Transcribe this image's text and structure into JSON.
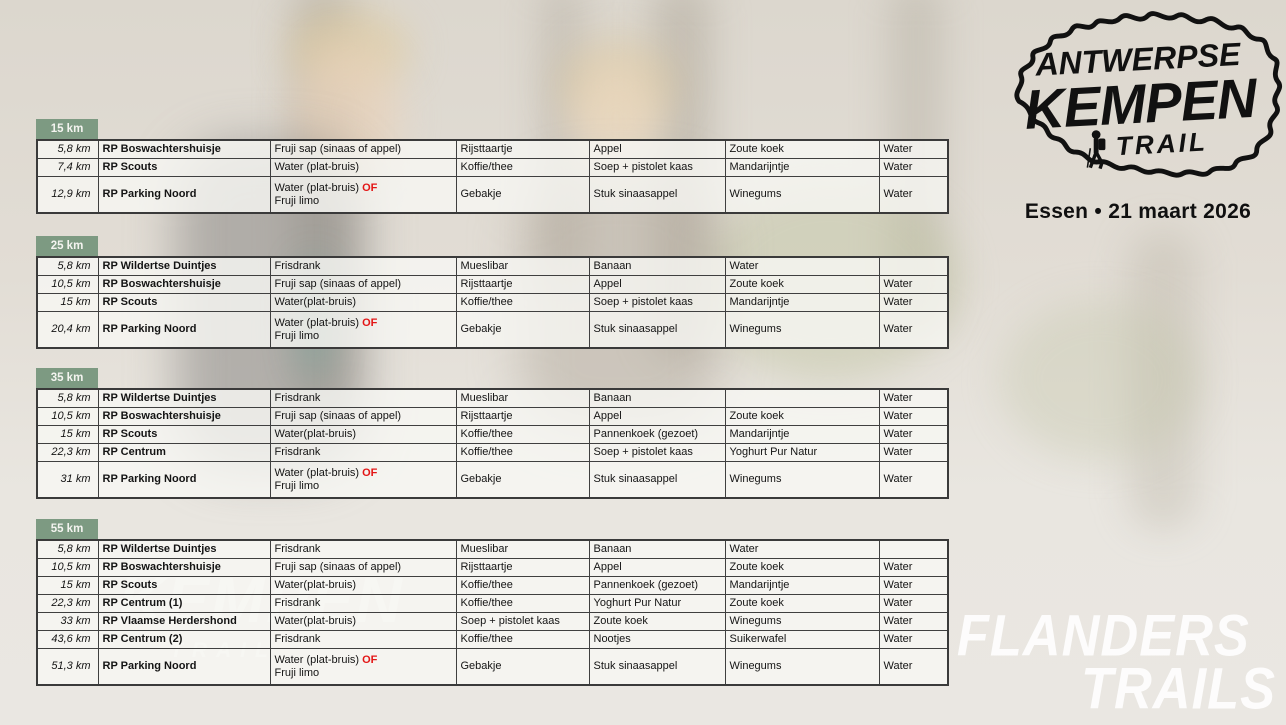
{
  "logo": {
    "line1": "ANTWERPSE",
    "line2": "KEMPEN",
    "line3": "TRAIL",
    "subtitle": "Essen • 21 maart 2026"
  },
  "watermark": {
    "line1": "FLANDERS",
    "line2": "TRAILS"
  },
  "ghost_watermark": {
    "line1": "KEMPEN",
    "line2": "TRAIL"
  },
  "colors": {
    "header_green": "#7d9a82",
    "accent_red": "#e31515",
    "table_border": "#3f3f3f",
    "text": "#141414",
    "watermark_white": "#ffffff"
  },
  "tables": [
    {
      "title": "15 km",
      "rows": [
        {
          "km": "5,8 km",
          "station": "RP Boswachtershuisje",
          "items": [
            "Fruji sap (sinaas of appel)",
            "Rijsttaartje",
            "Appel",
            "Zoute koek",
            "Water"
          ]
        },
        {
          "km": "7,4 km",
          "station": "RP Scouts",
          "items": [
            "Water (plat-bruis)",
            "Koffie/thee",
            "Soep + pistolet kaas",
            "Mandarijntje",
            "Water"
          ]
        },
        {
          "km": "12,9 km",
          "station": "RP Parking Noord",
          "items": [
            {
              "line1": "Water (plat-bruis) ",
              "red": "OF",
              "line2": "Fruji limo"
            },
            "Gebakje",
            "Stuk sinaasappel",
            "Winegums",
            "Water"
          ]
        }
      ]
    },
    {
      "title": "25 km",
      "rows": [
        {
          "km": "5,8 km",
          "station": "RP Wildertse Duintjes",
          "items": [
            "Frisdrank",
            "Mueslibar",
            "Banaan",
            "Water",
            ""
          ]
        },
        {
          "km": "10,5 km",
          "station": "RP Boswachtershuisje",
          "items": [
            "Fruji sap (sinaas of appel)",
            "Rijsttaartje",
            "Appel",
            "Zoute koek",
            "Water"
          ]
        },
        {
          "km": "15 km",
          "station": "RP Scouts",
          "items": [
            "Water(plat-bruis)",
            "Koffie/thee",
            "Soep + pistolet kaas",
            "Mandarijntje",
            "Water"
          ]
        },
        {
          "km": "20,4 km",
          "station": "RP Parking Noord",
          "items": [
            {
              "line1": "Water (plat-bruis) ",
              "red": "OF",
              "line2": "Fruji limo"
            },
            "Gebakje",
            "Stuk sinaasappel",
            "Winegums",
            "Water"
          ]
        }
      ]
    },
    {
      "title": "35 km",
      "rows": [
        {
          "km": "5,8 km",
          "station": "RP Wildertse Duintjes",
          "items": [
            "Frisdrank",
            "Mueslibar",
            "Banaan",
            "",
            "Water"
          ]
        },
        {
          "km": "10,5 km",
          "station": "RP Boswachtershuisje",
          "items": [
            "Fruji sap (sinaas of appel)",
            "Rijsttaartje",
            "Appel",
            "Zoute koek",
            "Water"
          ]
        },
        {
          "km": "15 km",
          "station": "RP Scouts",
          "items": [
            "Water(plat-bruis)",
            "Koffie/thee",
            "Pannenkoek (gezoet)",
            "Mandarijntje",
            "Water"
          ]
        },
        {
          "km": "22,3 km",
          "station": "RP Centrum",
          "items": [
            "Frisdrank",
            "Koffie/thee",
            "Soep + pistolet kaas",
            "Yoghurt Pur Natur",
            "Water"
          ]
        },
        {
          "km": "31 km",
          "station": "RP Parking Noord",
          "items": [
            {
              "line1": "Water (plat-bruis) ",
              "red": "OF",
              "line2": "Fruji limo"
            },
            "Gebakje",
            "Stuk sinaasappel",
            "Winegums",
            "Water"
          ]
        }
      ]
    },
    {
      "title": "55 km",
      "rows": [
        {
          "km": "5,8 km",
          "station": "RP Wildertse Duintjes",
          "items": [
            "Frisdrank",
            "Mueslibar",
            "Banaan",
            "Water",
            ""
          ]
        },
        {
          "km": "10,5 km",
          "station": "RP Boswachtershuisje",
          "items": [
            "Fruji sap (sinaas of appel)",
            "Rijsttaartje",
            "Appel",
            "Zoute koek",
            "Water"
          ]
        },
        {
          "km": "15 km",
          "station": "RP Scouts",
          "items": [
            "Water(plat-bruis)",
            "Koffie/thee",
            "Pannenkoek (gezoet)",
            "Mandarijntje",
            "Water"
          ]
        },
        {
          "km": "22,3 km",
          "station": "RP Centrum (1)",
          "items": [
            "Frisdrank",
            "Koffie/thee",
            "Yoghurt Pur Natur",
            "Zoute koek",
            "Water"
          ]
        },
        {
          "km": "33 km",
          "station": "RP Vlaamse Herdershond",
          "items": [
            "Water(plat-bruis)",
            "Soep + pistolet kaas",
            "Zoute koek",
            "Winegums",
            "Water"
          ]
        },
        {
          "km": "43,6 km",
          "station": "RP Centrum (2)",
          "items": [
            "Frisdrank",
            "Koffie/thee",
            "Nootjes",
            "Suikerwafel",
            "Water"
          ]
        },
        {
          "km": "51,3 km",
          "station": "RP Parking Noord",
          "items": [
            {
              "line1": "Water (plat-bruis) ",
              "red": "OF",
              "line2": "Fruji limo"
            },
            "Gebakje",
            "Stuk sinaasappel",
            "Winegums",
            "Water"
          ]
        }
      ]
    }
  ]
}
